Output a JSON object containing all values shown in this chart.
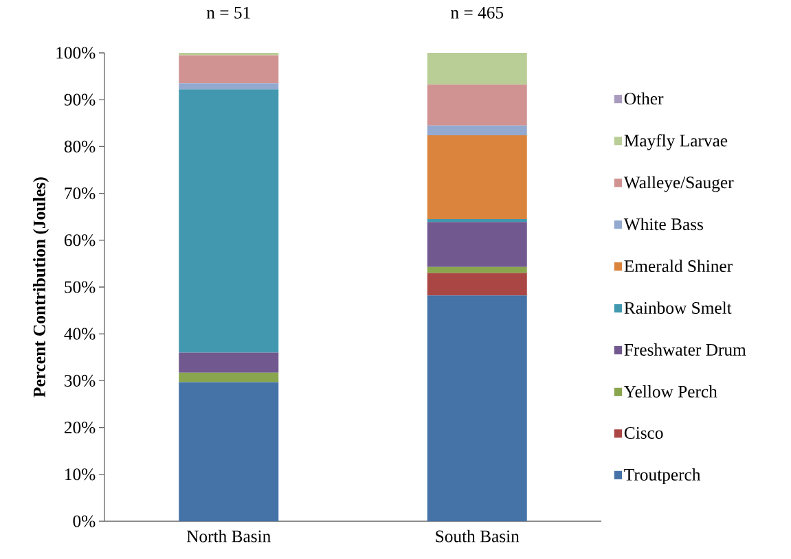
{
  "chart_data": {
    "type": "bar",
    "stacked": true,
    "ylabel": "Percent Contribution (Joules)",
    "categories": [
      "North Basin",
      "South Basin"
    ],
    "series": [
      {
        "name": "Troutperch",
        "color": "#4572a7",
        "values": [
          29.7,
          48.2
        ]
      },
      {
        "name": "Cisco",
        "color": "#aa4643",
        "values": [
          0,
          4.8
        ]
      },
      {
        "name": "Yellow Perch",
        "color": "#89a54e",
        "values": [
          2.0,
          1.3
        ]
      },
      {
        "name": "Freshwater Drum",
        "color": "#71588f",
        "values": [
          4.3,
          9.6
        ]
      },
      {
        "name": "Rainbow Smelt",
        "color": "#4198af",
        "values": [
          56.2,
          0.6
        ]
      },
      {
        "name": "Emerald Shiner",
        "color": "#db843d",
        "values": [
          0,
          17.9
        ]
      },
      {
        "name": "White Bass",
        "color": "#93a9cf",
        "values": [
          1.3,
          2.1
        ]
      },
      {
        "name": "Walleye/Sauger",
        "color": "#d19392",
        "values": [
          6.0,
          8.7
        ]
      },
      {
        "name": "Mayfly Larvae",
        "color": "#b9cd96",
        "values": [
          0.5,
          6.8
        ]
      },
      {
        "name": "Other",
        "color": "#a99bbd",
        "values": [
          0,
          0
        ]
      }
    ],
    "ylim": [
      0,
      100
    ],
    "yticks": [
      {
        "value": 0,
        "label": "0%"
      },
      {
        "value": 10,
        "label": "10%"
      },
      {
        "value": 20,
        "label": "20%"
      },
      {
        "value": 30,
        "label": "30%"
      },
      {
        "value": 40,
        "label": "40%"
      },
      {
        "value": 50,
        "label": "50%"
      },
      {
        "value": 60,
        "label": "60%"
      },
      {
        "value": 70,
        "label": "70%"
      },
      {
        "value": 80,
        "label": "80%"
      },
      {
        "value": 90,
        "label": "90%"
      },
      {
        "value": 100,
        "label": "100%"
      }
    ],
    "legend": "right",
    "annotations": [
      "n = 51",
      "n = 465"
    ]
  }
}
